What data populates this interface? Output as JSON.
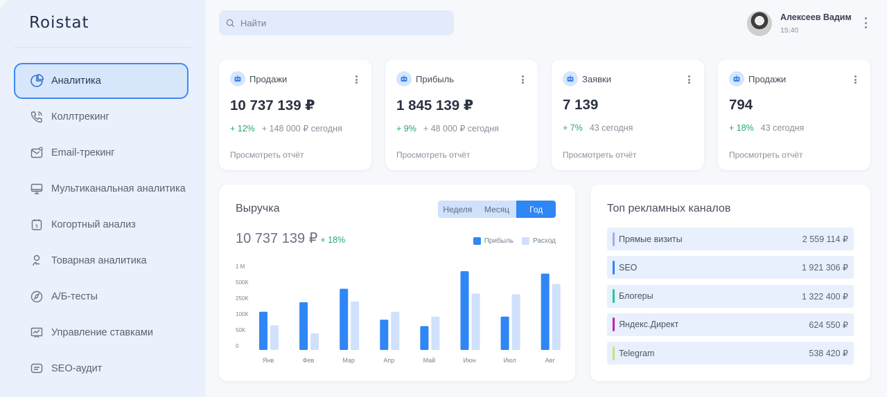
{
  "app": {
    "logo": "Roistat"
  },
  "colors": {
    "accent": "#2f86f5",
    "profit": "#2f86f5",
    "expense": "#cfe1fb",
    "positive": "#26a96c"
  },
  "search": {
    "placeholder": "Найти"
  },
  "user": {
    "name": "Алексеев Вадим",
    "time": "15:40"
  },
  "sidebar": {
    "items": [
      {
        "label": "Аналитика",
        "icon": "pie-chart-icon",
        "active": true
      },
      {
        "label": "Коллтрекинг",
        "icon": "phone-icon"
      },
      {
        "label": "Email-трекинг",
        "icon": "mail-icon"
      },
      {
        "label": "Мультиканальная аналитика",
        "icon": "monitor-icon"
      },
      {
        "label": "Когортный анализ",
        "icon": "calendar-dollar-icon"
      },
      {
        "label": "Товарная аналитика",
        "icon": "user-icon"
      },
      {
        "label": "А/Б-тесты",
        "icon": "compass-icon"
      },
      {
        "label": "Управление ставками",
        "icon": "trend-board-icon"
      },
      {
        "label": "SEO-аудит",
        "icon": "chat-icon"
      }
    ]
  },
  "cards": [
    {
      "title": "Продажи",
      "value": "10 737 139 ₽",
      "change": "+ 12%",
      "today": "+ 148 000 ₽ сегодня",
      "link": "Просмотреть отчёт"
    },
    {
      "title": "Прибыль",
      "value": "1 845 139 ₽",
      "change": "+ 9%",
      "today": "+ 48 000 ₽ сегодня",
      "link": "Просмотреть отчёт"
    },
    {
      "title": "Заявки",
      "value": "7 139",
      "change": "+ 7%",
      "today": "43 сегодня",
      "link": "Просмотреть отчёт"
    },
    {
      "title": "Продажи",
      "value": "794",
      "change": "+ 18%",
      "today": "43 сегодня",
      "link": "Просмотреть отчёт"
    }
  ],
  "revenue": {
    "title": "Выручка",
    "total": "10 737 139 ₽",
    "change": "+ 18%",
    "periods": [
      "Неделя",
      "Месяц",
      "Год"
    ],
    "active_period": "Год",
    "legend": {
      "profit": "Прибыль",
      "expense": "Расход"
    }
  },
  "chart_data": {
    "type": "bar",
    "categories": [
      "Янв",
      "Фев",
      "Мар",
      "Апр",
      "Май",
      "Июн",
      "Июл",
      "Авг"
    ],
    "y_tick_labels": [
      "0",
      "50K",
      "100K",
      "250K",
      "500K",
      "1 М"
    ],
    "series": [
      {
        "name": "Прибыль",
        "values": [
          2.4,
          3.0,
          3.85,
          1.9,
          1.5,
          4.95,
          2.1,
          4.8
        ]
      },
      {
        "name": "Расход",
        "values": [
          1.55,
          1.05,
          3.05,
          2.4,
          2.1,
          3.55,
          3.5,
          4.15
        ]
      }
    ],
    "ylim": [
      0,
      5
    ],
    "legend": "top-right"
  },
  "channels": {
    "title": "Топ рекламных каналов",
    "items": [
      {
        "name": "Прямые визиты",
        "amount": "2 559 114 ₽",
        "color": "#a7a9ef"
      },
      {
        "name": "SEO",
        "amount": "1 921 306 ₽",
        "color": "#2f86f5"
      },
      {
        "name": "Блогеры",
        "amount": "1 322 400 ₽",
        "color": "#1fc79a"
      },
      {
        "name": "Яндекс.Директ",
        "amount": "624 550 ₽",
        "color": "#c21fb8"
      },
      {
        "name": "Telegram",
        "amount": "538 420 ₽",
        "color": "#cfe06a"
      }
    ]
  }
}
